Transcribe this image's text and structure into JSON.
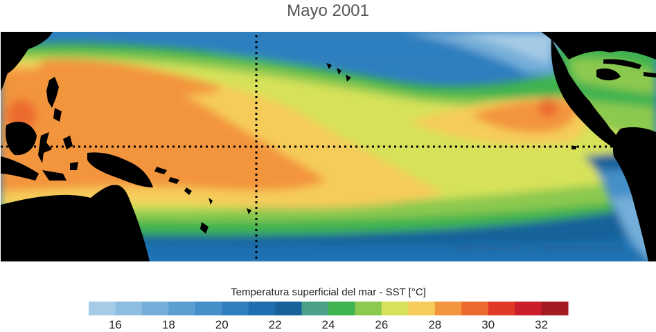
{
  "title": "Mayo 2001",
  "source_note": "Fuente: NOAA OI SST V2 High Resolution Dataset",
  "colorbar": {
    "title": "Temperatura superficial del mar - SST  [°C]",
    "tick_labels": [
      "16",
      "18",
      "20",
      "22",
      "24",
      "26",
      "28",
      "30",
      "32"
    ],
    "tick_values": [
      16,
      18,
      20,
      22,
      24,
      26,
      28,
      30,
      32
    ],
    "range": [
      15,
      33
    ],
    "bins": [
      {
        "from": 15,
        "to": 16,
        "color": "#a6cbe6"
      },
      {
        "from": 16,
        "to": 17,
        "color": "#8dbde0"
      },
      {
        "from": 17,
        "to": 18,
        "color": "#74aed9"
      },
      {
        "from": 18,
        "to": 19,
        "color": "#5b9fd2"
      },
      {
        "from": 19,
        "to": 20,
        "color": "#4590c8"
      },
      {
        "from": 20,
        "to": 21,
        "color": "#2f7fbf"
      },
      {
        "from": 21,
        "to": 22,
        "color": "#1f6fb0"
      },
      {
        "from": 22,
        "to": 23,
        "color": "#17629a"
      },
      {
        "from": 23,
        "to": 24,
        "color": "#4aa088"
      },
      {
        "from": 24,
        "to": 25,
        "color": "#3fb34f"
      },
      {
        "from": 25,
        "to": 26,
        "color": "#8cc94f"
      },
      {
        "from": 26,
        "to": 27,
        "color": "#d7e25a"
      },
      {
        "from": 27,
        "to": 28,
        "color": "#f5cc5a"
      },
      {
        "from": 28,
        "to": 29,
        "color": "#f3953e"
      },
      {
        "from": 29,
        "to": 30,
        "color": "#ec6a2d"
      },
      {
        "from": 30,
        "to": 31,
        "color": "#e03a27"
      },
      {
        "from": 31,
        "to": 32,
        "color": "#cc1e2a"
      },
      {
        "from": 32,
        "to": 33,
        "color": "#a51b22"
      }
    ]
  },
  "colors": {
    "land": "#000000",
    "guide_lines": "#000000"
  }
}
